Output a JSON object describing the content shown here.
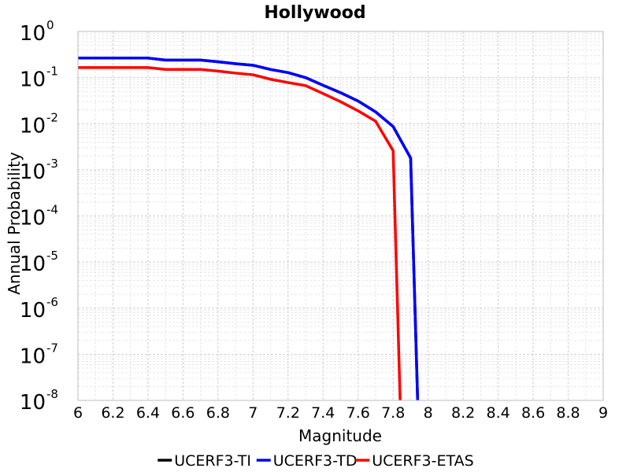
{
  "chart_data": {
    "type": "line",
    "title": "Hollywood",
    "xlabel": "Magnitude",
    "ylabel": "Annual Probability",
    "xlim": [
      6,
      9
    ],
    "ylim": [
      1e-08,
      1
    ],
    "y_scale": "log",
    "grid": true,
    "legend_placement": "bottom",
    "x_ticks": [
      "6",
      "6.2",
      "6.4",
      "6.6",
      "6.8",
      "7",
      "7.2",
      "7.4",
      "7.6",
      "7.8",
      "8",
      "8.2",
      "8.4",
      "8.6",
      "8.8",
      "9"
    ],
    "y_ticks": [
      {
        "base": "10",
        "exp": "0"
      },
      {
        "base": "10",
        "exp": "-1"
      },
      {
        "base": "10",
        "exp": "-2"
      },
      {
        "base": "10",
        "exp": "-3"
      },
      {
        "base": "10",
        "exp": "-4"
      },
      {
        "base": "10",
        "exp": "-5"
      },
      {
        "base": "10",
        "exp": "-6"
      },
      {
        "base": "10",
        "exp": "-7"
      },
      {
        "base": "10",
        "exp": "-8"
      }
    ],
    "series": [
      {
        "name": "UCERF3-TI",
        "color": "#000000",
        "x": [
          6.0,
          6.1,
          6.2,
          6.3,
          6.4,
          6.5,
          6.6,
          6.7,
          6.8,
          6.9,
          7.0,
          7.1,
          7.2,
          7.3,
          7.4,
          7.5,
          7.6,
          7.7,
          7.8,
          7.9,
          7.94
        ],
        "y": [
          0.265,
          0.265,
          0.265,
          0.265,
          0.265,
          0.24,
          0.24,
          0.24,
          0.22,
          0.2,
          0.185,
          0.15,
          0.128,
          0.1,
          0.068,
          0.047,
          0.031,
          0.018,
          0.0087,
          0.0018,
          1e-08
        ]
      },
      {
        "name": "UCERF3-TD",
        "color": "#0000ff",
        "x": [
          6.0,
          6.1,
          6.2,
          6.3,
          6.4,
          6.5,
          6.6,
          6.7,
          6.8,
          6.9,
          7.0,
          7.1,
          7.2,
          7.3,
          7.4,
          7.5,
          7.6,
          7.7,
          7.8,
          7.9,
          7.94
        ],
        "y": [
          0.265,
          0.265,
          0.265,
          0.265,
          0.265,
          0.24,
          0.24,
          0.24,
          0.22,
          0.2,
          0.185,
          0.15,
          0.128,
          0.1,
          0.068,
          0.047,
          0.031,
          0.018,
          0.0087,
          0.0018,
          1e-08
        ]
      },
      {
        "name": "UCERF3-ETAS",
        "color": "#ff0000",
        "x": [
          6.0,
          6.1,
          6.2,
          6.3,
          6.4,
          6.5,
          6.6,
          6.7,
          6.8,
          6.9,
          7.0,
          7.1,
          7.2,
          7.3,
          7.4,
          7.5,
          7.6,
          7.7,
          7.8,
          7.84
        ],
        "y": [
          0.165,
          0.165,
          0.165,
          0.165,
          0.165,
          0.15,
          0.15,
          0.15,
          0.138,
          0.125,
          0.115,
          0.092,
          0.078,
          0.067,
          0.045,
          0.03,
          0.019,
          0.0113,
          0.0026,
          1e-08
        ]
      }
    ]
  }
}
